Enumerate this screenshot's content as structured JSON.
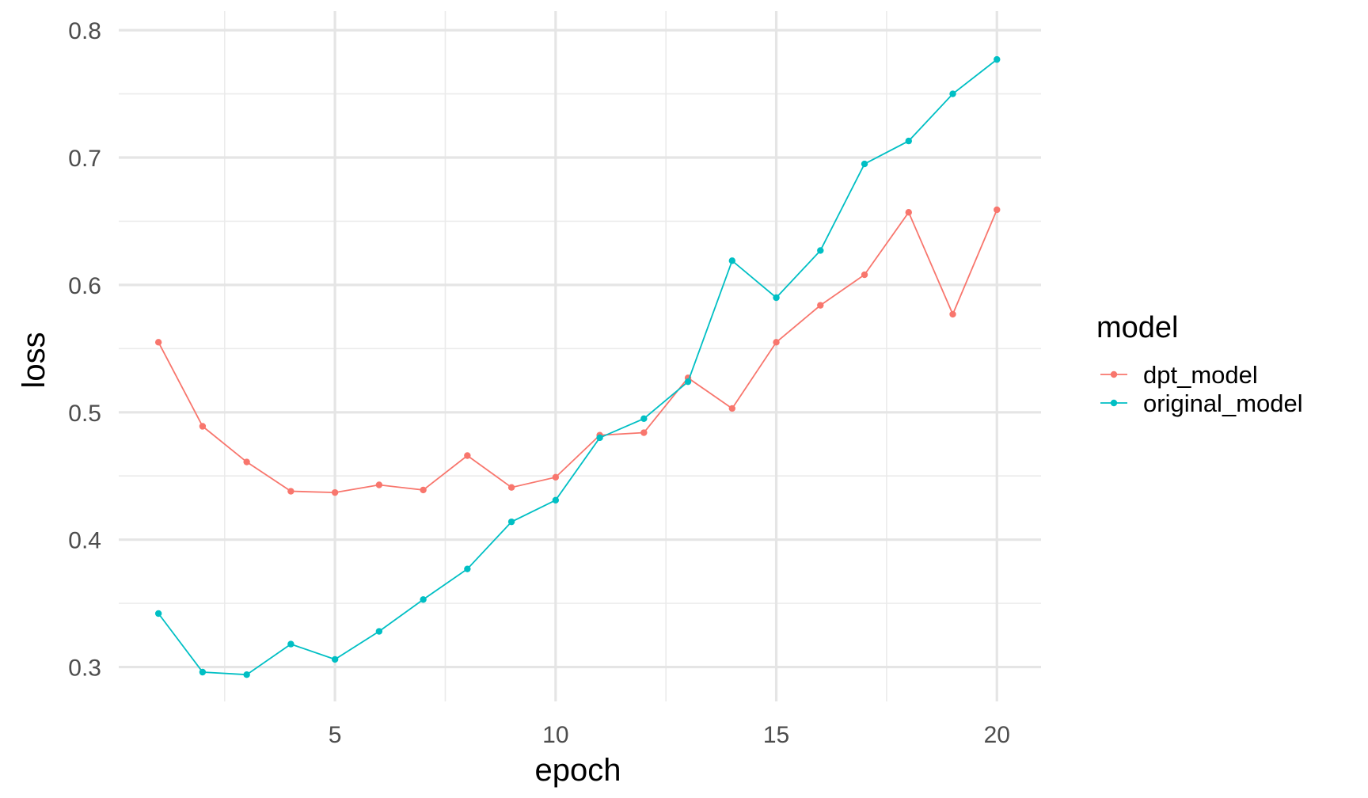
{
  "chart_data": {
    "type": "line",
    "xlabel": "epoch",
    "ylabel": "loss",
    "xlim": [
      0.1,
      21
    ],
    "ylim": [
      0.273,
      0.815
    ],
    "x_ticks": [
      5,
      10,
      15,
      20
    ],
    "x_minor_ticks": [
      2.5,
      7.5,
      12.5,
      17.5
    ],
    "y_ticks": [
      0.3,
      0.4,
      0.5,
      0.6,
      0.7,
      0.8
    ],
    "y_minor_ticks": [
      0.35,
      0.45,
      0.55,
      0.65,
      0.75
    ],
    "grid": true,
    "legend_title": "model",
    "legend_position": "right",
    "x": [
      1,
      2,
      3,
      4,
      5,
      6,
      7,
      8,
      9,
      10,
      11,
      12,
      13,
      14,
      15,
      16,
      17,
      18,
      19,
      20
    ],
    "series": [
      {
        "name": "dpt_model",
        "color": "#F8766D",
        "values": [
          0.555,
          0.489,
          0.461,
          0.438,
          0.437,
          0.443,
          0.439,
          0.466,
          0.441,
          0.449,
          0.482,
          0.484,
          0.527,
          0.503,
          0.555,
          0.584,
          0.608,
          0.657,
          0.577,
          0.659
        ]
      },
      {
        "name": "original_model",
        "color": "#00BFC4",
        "values": [
          0.342,
          0.296,
          0.294,
          0.318,
          0.306,
          0.328,
          0.353,
          0.377,
          0.414,
          0.431,
          0.48,
          0.495,
          0.524,
          0.619,
          0.59,
          0.627,
          0.695,
          0.713,
          0.75,
          0.777
        ]
      }
    ]
  }
}
